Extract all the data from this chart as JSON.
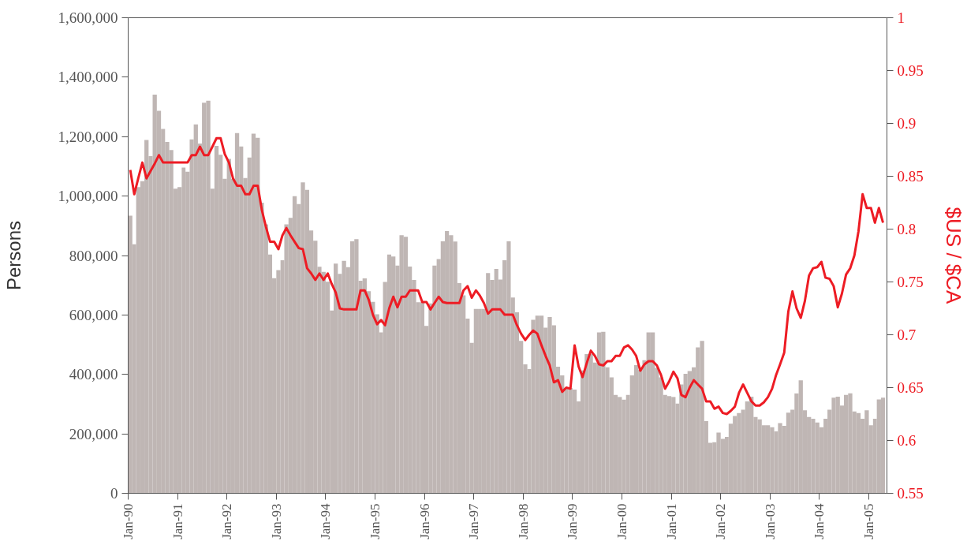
{
  "chart_data": {
    "type": "bar",
    "ylabel": "Persons",
    "y2label": "$US / $CA",
    "x": [
      "1990-01",
      "1990-02",
      "1990-03",
      "1990-04",
      "1990-05",
      "1990-06",
      "1990-07",
      "1990-08",
      "1990-09",
      "1990-10",
      "1990-11",
      "1990-12",
      "1991-01",
      "1991-02",
      "1991-03",
      "1991-04",
      "1991-05",
      "1991-06",
      "1991-07",
      "1991-08",
      "1991-09",
      "1991-10",
      "1991-11",
      "1991-12",
      "1992-01",
      "1992-02",
      "1992-03",
      "1992-04",
      "1992-05",
      "1992-06",
      "1992-07",
      "1992-08",
      "1992-09",
      "1992-10",
      "1992-11",
      "1992-12",
      "1993-01",
      "1993-02",
      "1993-03",
      "1993-04",
      "1993-05",
      "1993-06",
      "1993-07",
      "1993-08",
      "1993-09",
      "1993-10",
      "1993-11",
      "1993-12",
      "1994-01",
      "1994-02",
      "1994-03",
      "1994-04",
      "1994-05",
      "1994-06",
      "1994-07",
      "1994-08",
      "1994-09",
      "1994-10",
      "1994-11",
      "1994-12",
      "1995-01",
      "1995-02",
      "1995-03",
      "1995-04",
      "1995-05",
      "1995-06",
      "1995-07",
      "1995-08",
      "1995-09",
      "1995-10",
      "1995-11",
      "1995-12",
      "1996-01",
      "1996-02",
      "1996-03",
      "1996-04",
      "1996-05",
      "1996-06",
      "1996-07",
      "1996-08",
      "1996-09",
      "1996-10",
      "1996-11",
      "1996-12",
      "1997-01",
      "1997-02",
      "1997-03",
      "1997-04",
      "1997-05",
      "1997-06",
      "1997-07",
      "1997-08",
      "1997-09",
      "1997-10",
      "1997-11",
      "1997-12",
      "1998-01",
      "1998-02",
      "1998-03",
      "1998-04",
      "1998-05",
      "1998-06",
      "1998-07",
      "1998-08",
      "1998-09",
      "1998-10",
      "1998-11",
      "1998-12",
      "1999-01",
      "1999-02",
      "1999-03",
      "1999-04",
      "1999-05",
      "1999-06",
      "1999-07",
      "1999-08",
      "1999-09",
      "1999-10",
      "1999-11",
      "1999-12",
      "2000-01",
      "2000-02",
      "2000-03",
      "2000-04",
      "2000-05",
      "2000-06",
      "2000-07",
      "2000-08",
      "2000-09",
      "2000-10",
      "2000-11",
      "2000-12",
      "2001-01",
      "2001-02",
      "2001-03",
      "2001-04",
      "2001-05",
      "2001-06",
      "2001-07",
      "2001-08",
      "2001-09",
      "2001-10",
      "2001-11",
      "2001-12",
      "2002-01",
      "2002-02",
      "2002-03",
      "2002-04",
      "2002-05",
      "2002-06",
      "2002-07",
      "2002-08",
      "2002-09",
      "2002-10",
      "2002-11",
      "2002-12",
      "2003-01",
      "2003-02",
      "2003-03",
      "2003-04",
      "2003-05",
      "2003-06",
      "2003-07",
      "2003-08",
      "2003-09",
      "2003-10",
      "2003-11",
      "2003-12",
      "2004-01",
      "2004-02",
      "2004-03",
      "2004-04",
      "2004-05",
      "2004-06",
      "2004-07",
      "2004-08",
      "2004-09",
      "2004-10",
      "2004-11",
      "2004-12",
      "2005-01",
      "2005-02",
      "2005-03",
      "2005-04"
    ],
    "series": [
      {
        "color": "#bfb6b4",
        "values": [
          934000,
          838000,
          1030000,
          1050000,
          1189000,
          1134000,
          1341000,
          1287000,
          1226000,
          1182000,
          1155000,
          1025000,
          1030000,
          1096000,
          1082000,
          1191000,
          1241000,
          1177000,
          1314000,
          1321000,
          1025000,
          1169000,
          1139000,
          1058000,
          1125000,
          1058000,
          1212000,
          1167000,
          1061000,
          1130000,
          1210000,
          1196000,
          978000,
          905000,
          803000,
          724000,
          751000,
          784000,
          905000,
          927000,
          1000000,
          973000,
          1046000,
          1021000,
          884000,
          850000,
          762000,
          745000,
          712000,
          615000,
          773000,
          738000,
          782000,
          761000,
          848000,
          855000,
          715000,
          723000,
          680000,
          644000,
          602000,
          541000,
          711000,
          803000,
          797000,
          766000,
          868000,
          863000,
          763000,
          718000,
          643000,
          643000,
          563000,
          639000,
          766000,
          788000,
          848000,
          882000,
          868000,
          847000,
          707000,
          666000,
          588000,
          506000,
          620000,
          620000,
          620000,
          741000,
          718000,
          755000,
          719000,
          784000,
          848000,
          659000,
          609000,
          513000,
          434000,
          418000,
          584000,
          598000,
          598000,
          557000,
          593000,
          565000,
          426000,
          397000,
          354000,
          354000,
          349000,
          309000,
          413000,
          468000,
          468000,
          440000,
          541000,
          543000,
          424000,
          390000,
          331000,
          324000,
          315000,
          331000,
          397000,
          431000,
          415000,
          448000,
          541000,
          541000,
          422000,
          390000,
          331000,
          327000,
          324000,
          302000,
          366000,
          402000,
          411000,
          424000,
          491000,
          513000,
          243000,
          170000,
          172000,
          204000,
          183000,
          190000,
          234000,
          260000,
          270000,
          281000,
          309000,
          325000,
          257000,
          249000,
          229000,
          229000,
          222000,
          208000,
          236000,
          227000,
          271000,
          281000,
          336000,
          380000,
          279000,
          257000,
          251000,
          238000,
          222000,
          251000,
          281000,
          322000,
          325000,
          295000,
          331000,
          336000,
          275000,
          270000,
          251000,
          279000,
          229000,
          251000,
          316000,
          322000
        ]
      },
      {
        "type": "line",
        "axis": "y2",
        "color": "#ed1c24",
        "values": [
          0.856,
          0.833,
          0.848,
          0.863,
          0.848,
          0.855,
          0.862,
          0.87,
          0.863,
          0.863,
          0.863,
          0.863,
          0.863,
          0.863,
          0.863,
          0.87,
          0.87,
          0.878,
          0.87,
          0.87,
          0.878,
          0.886,
          0.886,
          0.871,
          0.863,
          0.848,
          0.841,
          0.841,
          0.833,
          0.833,
          0.841,
          0.841,
          0.818,
          0.802,
          0.788,
          0.788,
          0.781,
          0.794,
          0.801,
          0.794,
          0.788,
          0.782,
          0.781,
          0.763,
          0.758,
          0.752,
          0.758,
          0.752,
          0.758,
          0.748,
          0.74,
          0.725,
          0.724,
          0.724,
          0.724,
          0.724,
          0.742,
          0.742,
          0.733,
          0.719,
          0.71,
          0.714,
          0.709,
          0.725,
          0.736,
          0.726,
          0.736,
          0.736,
          0.742,
          0.742,
          0.742,
          0.731,
          0.731,
          0.724,
          0.73,
          0.736,
          0.731,
          0.73,
          0.73,
          0.73,
          0.73,
          0.742,
          0.746,
          0.735,
          0.742,
          0.737,
          0.73,
          0.72,
          0.724,
          0.724,
          0.724,
          0.719,
          0.719,
          0.719,
          0.709,
          0.701,
          0.695,
          0.7,
          0.704,
          0.701,
          0.69,
          0.68,
          0.671,
          0.655,
          0.657,
          0.646,
          0.65,
          0.649,
          0.69,
          0.67,
          0.66,
          0.673,
          0.685,
          0.68,
          0.672,
          0.671,
          0.675,
          0.675,
          0.68,
          0.68,
          0.688,
          0.69,
          0.686,
          0.68,
          0.666,
          0.672,
          0.675,
          0.675,
          0.671,
          0.662,
          0.649,
          0.656,
          0.665,
          0.659,
          0.643,
          0.641,
          0.65,
          0.657,
          0.653,
          0.649,
          0.637,
          0.637,
          0.63,
          0.632,
          0.626,
          0.625,
          0.628,
          0.632,
          0.645,
          0.653,
          0.645,
          0.637,
          0.633,
          0.633,
          0.636,
          0.641,
          0.649,
          0.662,
          0.672,
          0.683,
          0.722,
          0.741,
          0.725,
          0.716,
          0.732,
          0.756,
          0.763,
          0.764,
          0.769,
          0.754,
          0.753,
          0.746,
          0.726,
          0.739,
          0.757,
          0.763,
          0.775,
          0.798,
          0.833,
          0.82,
          0.82,
          0.806,
          0.82,
          0.806
        ]
      }
    ],
    "xlim": [
      "1990-01",
      "2005-05-15"
    ],
    "xticks": [
      {
        "value": "1990-01",
        "label": "Jan-90"
      },
      {
        "value": "1991-01",
        "label": "Jan-91"
      },
      {
        "value": "1992-01",
        "label": "Jan-92"
      },
      {
        "value": "1993-01",
        "label": "Jan-93"
      },
      {
        "value": "1994-01",
        "label": "Jan-94"
      },
      {
        "value": "1995-01",
        "label": "Jan-95"
      },
      {
        "value": "1996-01",
        "label": "Jan-96"
      },
      {
        "value": "1997-01",
        "label": "Jan-97"
      },
      {
        "value": "1998-01",
        "label": "Jan-98"
      },
      {
        "value": "1999-01",
        "label": "Jan-99"
      },
      {
        "value": "2000-01",
        "label": "Jan-00"
      },
      {
        "value": "2001-01",
        "label": "Jan-01"
      },
      {
        "value": "2002-01",
        "label": "Jan-02"
      },
      {
        "value": "2003-01",
        "label": "Jan-03"
      },
      {
        "value": "2004-01",
        "label": "Jan-04"
      },
      {
        "value": "2005-01",
        "label": "Jan-05"
      }
    ],
    "ylim": [
      0,
      1600000
    ],
    "yticks": [
      0,
      {
        "value": 200000,
        "label": "200,000"
      },
      {
        "value": 400000,
        "label": "400,000"
      },
      {
        "value": 600000,
        "label": "600,000"
      },
      {
        "value": 800000,
        "label": "800,000"
      },
      {
        "value": 1000000,
        "label": "1,000,000"
      },
      {
        "value": 1200000,
        "label": "1,200,000"
      },
      {
        "value": 1400000,
        "label": "1,400,000"
      },
      {
        "value": 1600000,
        "label": "1,600,000"
      }
    ],
    "y2lim": [
      0.55,
      1
    ],
    "y2ticks": [
      0.55,
      0.6,
      0.65,
      0.7,
      0.75,
      0.8,
      0.85,
      0.9,
      0.95,
      1
    ],
    "grid": false
  }
}
